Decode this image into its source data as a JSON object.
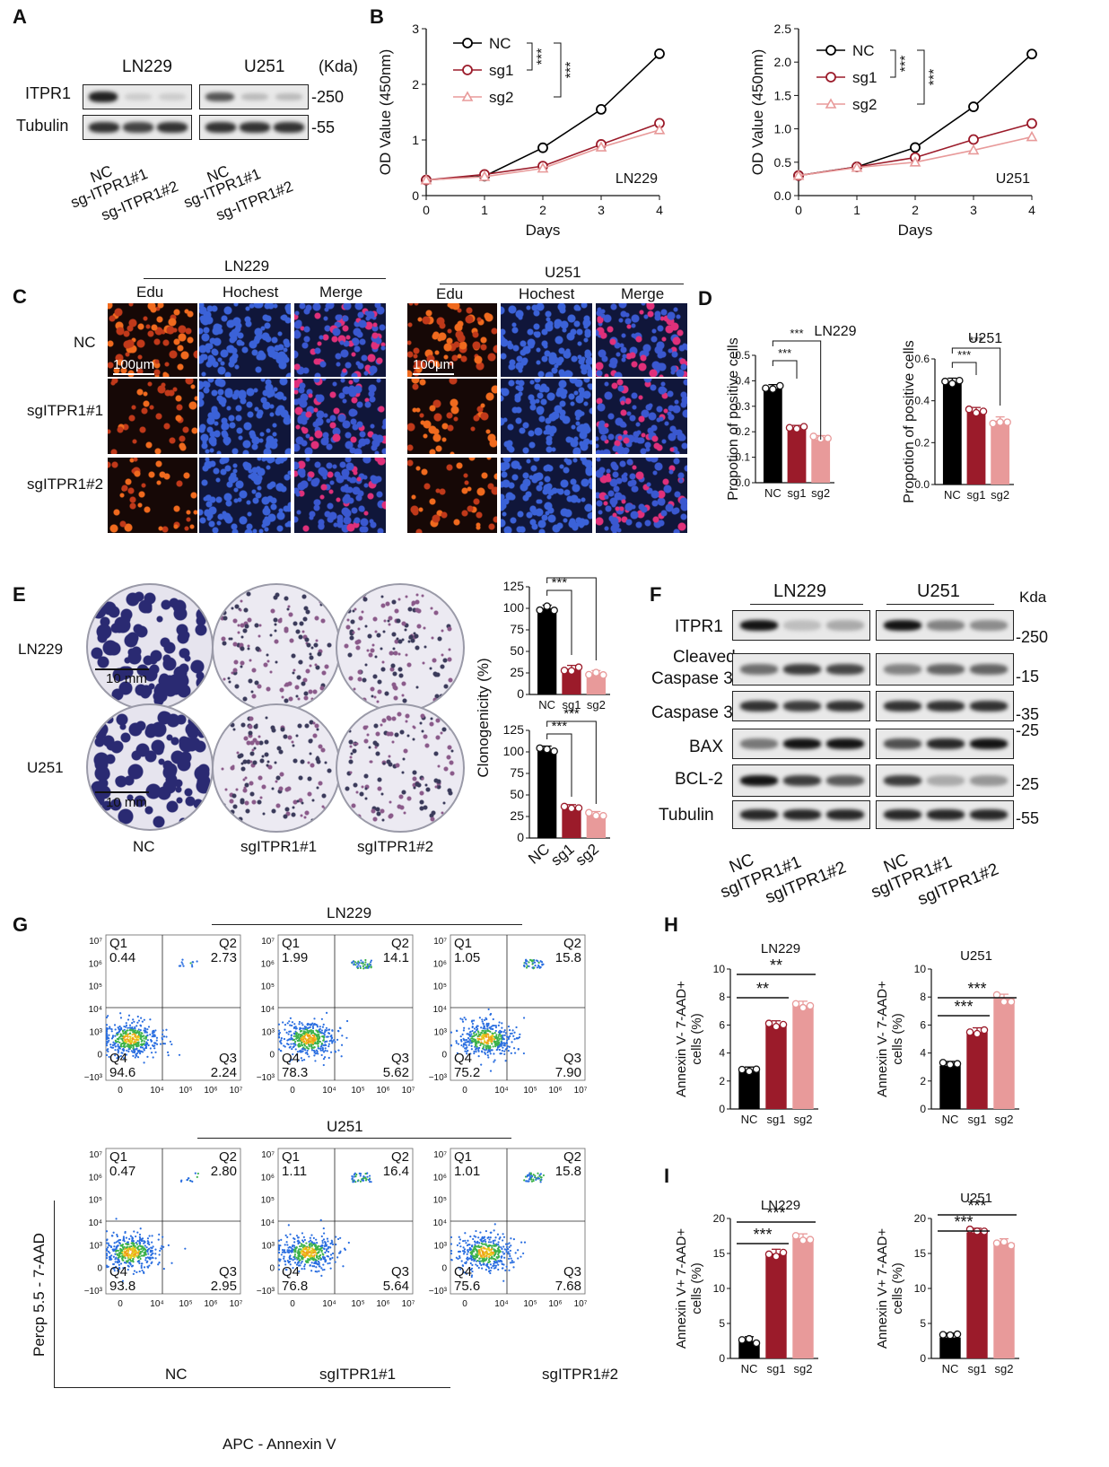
{
  "panels": {
    "A": "A",
    "B": "B",
    "C": "C",
    "D": "D",
    "E": "E",
    "F": "F",
    "G": "G",
    "H": "H",
    "I": "I"
  },
  "panelA": {
    "groups": [
      "LN229",
      "U251"
    ],
    "unit": "(Kda)",
    "rows": [
      "ITPR1",
      "Tubulin"
    ],
    "markers": [
      "-250",
      "-55"
    ],
    "lanes": [
      "NC",
      "sg-ITPR1#1",
      "sg-ITPR1#2"
    ]
  },
  "panelB": {
    "legend": [
      "NC",
      "sg1",
      "sg2"
    ],
    "sig": "***",
    "xlabel": "Days",
    "ylabel": "OD Value (450nm)"
  },
  "chart_data": [
    {
      "type": "line",
      "cell": "LN229",
      "x": [
        0,
        1,
        2,
        3,
        4
      ],
      "ylim": [
        0,
        3
      ],
      "xlabel": "Days",
      "ylabel": "OD Value (450nm)",
      "series": [
        {
          "name": "NC",
          "values": [
            0.28,
            0.35,
            0.86,
            1.55,
            2.55
          ]
        },
        {
          "name": "sg1",
          "values": [
            0.28,
            0.38,
            0.53,
            0.92,
            1.3
          ]
        },
        {
          "name": "sg2",
          "values": [
            0.28,
            0.34,
            0.49,
            0.87,
            1.18
          ]
        }
      ]
    },
    {
      "type": "line",
      "cell": "U251",
      "x": [
        0,
        1,
        2,
        3,
        4
      ],
      "ylim": [
        0,
        2.5
      ],
      "xlabel": "Days",
      "ylabel": "OD Value (450nm)",
      "series": [
        {
          "name": "NC",
          "values": [
            0.3,
            0.43,
            0.72,
            1.33,
            2.12
          ]
        },
        {
          "name": "sg1",
          "values": [
            0.3,
            0.43,
            0.57,
            0.84,
            1.08
          ]
        },
        {
          "name": "sg2",
          "values": [
            0.3,
            0.42,
            0.5,
            0.68,
            0.88
          ]
        }
      ]
    },
    {
      "type": "bar",
      "cell": "LN229",
      "categories": [
        "NC",
        "sg1",
        "sg2"
      ],
      "values": [
        0.37,
        0.21,
        0.17
      ],
      "ylim": [
        0,
        0.5
      ],
      "ylabel": "Propotion of positive cells"
    },
    {
      "type": "bar",
      "cell": "U251",
      "categories": [
        "NC",
        "sg1",
        "sg2"
      ],
      "values": [
        0.49,
        0.35,
        0.305
      ],
      "ylim": [
        0,
        0.6
      ],
      "ylabel": "Propotion of positive cells"
    },
    {
      "type": "bar",
      "cell": "LN229",
      "categories": [
        "NC",
        "sg1",
        "sg2"
      ],
      "values": [
        100,
        30,
        24
      ],
      "ylim": [
        0,
        125
      ],
      "ylabel": "Clonogenicity (%)"
    },
    {
      "type": "bar",
      "cell": "U251",
      "categories": [
        "NC",
        "sg1",
        "sg2"
      ],
      "values": [
        103,
        35,
        27
      ],
      "ylim": [
        0,
        125
      ],
      "ylabel": "Clonogenicity (%)"
    },
    {
      "type": "bar",
      "cell": "LN229",
      "categories": [
        "NC",
        "sg1",
        "sg2"
      ],
      "values": [
        2.7,
        6.0,
        7.4
      ],
      "ylim": [
        0,
        10
      ],
      "ylabel": "Annexin V- 7-AAD+ cells (%)"
    },
    {
      "type": "bar",
      "cell": "U251",
      "categories": [
        "NC",
        "sg1",
        "sg2"
      ],
      "values": [
        3.1,
        5.5,
        7.9
      ],
      "ylim": [
        0,
        10
      ],
      "ylabel": "Annexin V- 7-AAD+ cells (%)"
    },
    {
      "type": "bar",
      "cell": "LN229",
      "categories": [
        "NC",
        "sg1",
        "sg2"
      ],
      "values": [
        2.5,
        15,
        17.2
      ],
      "ylim": [
        0,
        20
      ],
      "ylabel": "Annexin V+ 7-AAD+ cells (%)"
    },
    {
      "type": "bar",
      "cell": "U251",
      "categories": [
        "NC",
        "sg1",
        "sg2"
      ],
      "values": [
        3.0,
        18,
        16.5
      ],
      "ylim": [
        0,
        20
      ],
      "ylabel": "Annexin V+ 7-AAD+ cells (%)"
    }
  ],
  "panelC": {
    "groups": [
      "LN229",
      "U251"
    ],
    "cols": [
      "Edu",
      "Hochest",
      "Merge"
    ],
    "rows": [
      "NC",
      "sgITPR1#1",
      "sgITPR1#2"
    ],
    "scale": "100μm"
  },
  "panelD": {
    "ylabel": "Propotion of positive cells",
    "cells": [
      "LN229",
      "U251"
    ],
    "sig": "***"
  },
  "panelE": {
    "rows": [
      "LN229",
      "U251"
    ],
    "cols": [
      "NC",
      "sgITPR1#1",
      "sgITPR1#2"
    ],
    "scale": "10 mm",
    "ylabel": "Clonogenicity (%)",
    "sig": "***"
  },
  "panelF": {
    "groups": [
      "LN229",
      "U251"
    ],
    "unit": "Kda",
    "rows": [
      "ITPR1",
      "Cleaved",
      "Caspase 3",
      "Caspase 3",
      "BAX",
      "BCL-2",
      "Tubulin"
    ],
    "markers": [
      "-250",
      "-15",
      "-35",
      "-25",
      "-25",
      "-55"
    ],
    "lanes": [
      "NC",
      "sgITPR1#1",
      "sgITPR1#2"
    ]
  },
  "panelG": {
    "groups": [
      "LN229",
      "U251"
    ],
    "cols": [
      "NC",
      "sgITPR1#1",
      "sgITPR1#2"
    ],
    "quad": [
      "Q1",
      "Q2",
      "Q3",
      "Q4"
    ],
    "values": [
      [
        [
          "0.44",
          "2.73",
          "2.24",
          "94.6"
        ],
        [
          "1.99",
          "14.1",
          "5.62",
          "78.3"
        ],
        [
          "1.05",
          "15.8",
          "7.90",
          "75.2"
        ]
      ],
      [
        [
          "0.47",
          "2.80",
          "2.95",
          "93.8"
        ],
        [
          "1.11",
          "16.4",
          "5.64",
          "76.8"
        ],
        [
          "1.01",
          "15.8",
          "7.68",
          "75.6"
        ]
      ]
    ],
    "xlabel": "APC - Annexin V",
    "ylabel": "Percp 5.5 - 7-AAD",
    "yticks": [
      "10⁷",
      "10⁶",
      "10⁵",
      "10⁴",
      "10³",
      "0",
      "−10³"
    ],
    "xticks": [
      "0",
      "10⁴",
      "10⁵",
      "10⁶",
      "10⁷"
    ]
  },
  "panelH": {
    "ylabel": "Annexin V- 7-AAD+ cells (%)",
    "cells": [
      "LN229",
      "U251"
    ],
    "sig": [
      "**",
      "**",
      "***",
      "***"
    ]
  },
  "panelI": {
    "ylabel": "Annexin V+ 7-AAD+ cells (%)",
    "cells": [
      "LN229",
      "U251"
    ],
    "sig": "***"
  },
  "colors": {
    "NC": "#000000",
    "sg1": "#9b1b2a",
    "sg2": "#e89a9a",
    "micro_bg": "#10163a",
    "edu": "#e0501a",
    "hoechst": "#2a4fc8"
  }
}
